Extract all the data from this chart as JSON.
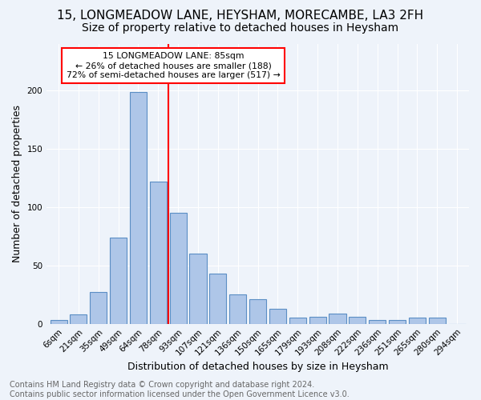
{
  "title": "15, LONGMEADOW LANE, HEYSHAM, MORECAMBE, LA3 2FH",
  "subtitle": "Size of property relative to detached houses in Heysham",
  "xlabel": "Distribution of detached houses by size in Heysham",
  "ylabel": "Number of detached properties",
  "bar_labels": [
    "6sqm",
    "21sqm",
    "35sqm",
    "49sqm",
    "64sqm",
    "78sqm",
    "93sqm",
    "107sqm",
    "121sqm",
    "136sqm",
    "150sqm",
    "165sqm",
    "179sqm",
    "193sqm",
    "208sqm",
    "222sqm",
    "236sqm",
    "251sqm",
    "265sqm",
    "280sqm",
    "294sqm"
  ],
  "bar_values": [
    3,
    8,
    27,
    74,
    199,
    122,
    95,
    60,
    43,
    25,
    21,
    13,
    5,
    6,
    9,
    6,
    3,
    3,
    5,
    5,
    0
  ],
  "bar_color": "#aec6e8",
  "bar_edge_color": "#5b8ec4",
  "background_color": "#eef3fa",
  "grid_color": "#ffffff",
  "vline_x": 5.5,
  "vline_color": "red",
  "annotation_text": "15 LONGMEADOW LANE: 85sqm\n← 26% of detached houses are smaller (188)\n72% of semi-detached houses are larger (517) →",
  "annotation_box_color": "white",
  "annotation_box_edge": "red",
  "footer": "Contains HM Land Registry data © Crown copyright and database right 2024.\nContains public sector information licensed under the Open Government Licence v3.0.",
  "title_fontsize": 11,
  "subtitle_fontsize": 10,
  "xlabel_fontsize": 9,
  "ylabel_fontsize": 9,
  "tick_fontsize": 7.5,
  "footer_fontsize": 7,
  "ylim": [
    0,
    240
  ]
}
